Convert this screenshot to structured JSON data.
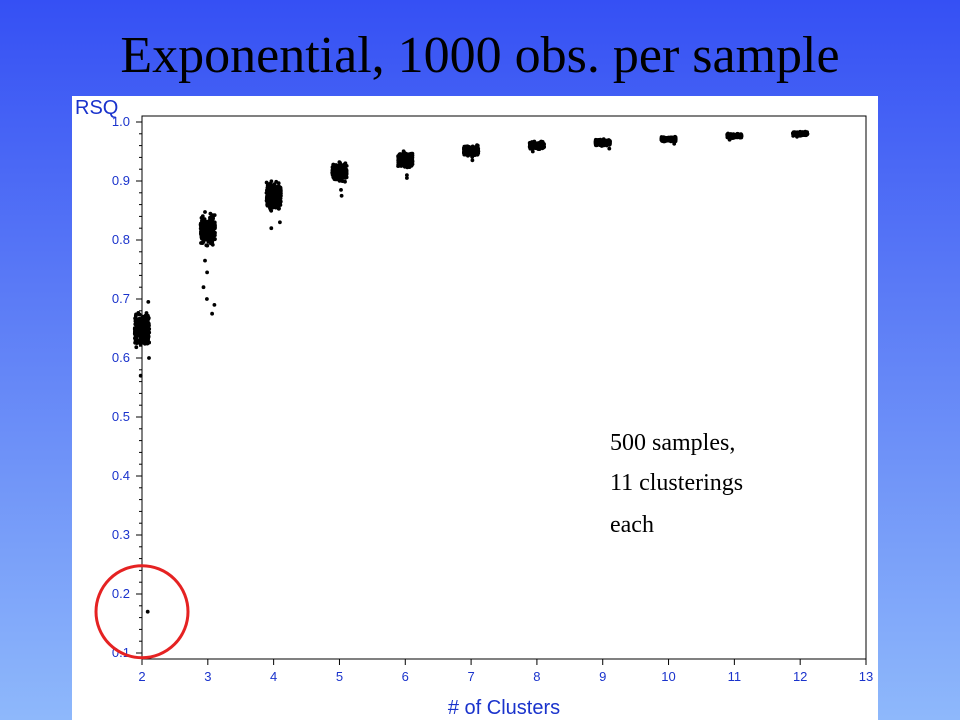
{
  "slide": {
    "title": "Exponential, 1000 obs. per sample"
  },
  "chart_data": {
    "type": "scatter",
    "title": "",
    "xlabel": "# of Clusters",
    "ylabel": "RSQ",
    "xlim": [
      2,
      13
    ],
    "ylim": [
      0.1,
      1.0
    ],
    "xticks": [
      2,
      3,
      4,
      5,
      6,
      7,
      8,
      9,
      10,
      11,
      12,
      13
    ],
    "yticks": [
      "0.1",
      "0.2",
      "0.3",
      "0.4",
      "0.5",
      "0.6",
      "0.7",
      "0.8",
      "0.9",
      "1.0"
    ],
    "grid": false,
    "annotation": [
      "500 samples,",
      "11 clusterings",
      "each"
    ],
    "highlight": {
      "x": 2,
      "y": 0.17,
      "shape": "circle",
      "color": "#e52222"
    },
    "clusters": [
      {
        "x": 2,
        "core": [
          0.615,
          0.685
        ],
        "tails": [
          0.57,
          0.6,
          0.695,
          0.17
        ]
      },
      {
        "x": 3,
        "core": [
          0.785,
          0.85
        ],
        "tails": [
          0.675,
          0.69,
          0.7,
          0.72,
          0.745,
          0.765
        ]
      },
      {
        "x": 4,
        "core": [
          0.84,
          0.905
        ],
        "tails": [
          0.82,
          0.83
        ]
      },
      {
        "x": 5,
        "core": [
          0.895,
          0.935
        ],
        "tails": [
          0.875,
          0.885
        ]
      },
      {
        "x": 6,
        "core": [
          0.92,
          0.952
        ],
        "tails": [
          0.905,
          0.91
        ]
      },
      {
        "x": 7,
        "core": [
          0.94,
          0.962
        ],
        "tails": [
          0.935
        ]
      },
      {
        "x": 8,
        "core": [
          0.953,
          0.968
        ],
        "tails": [
          0.95
        ]
      },
      {
        "x": 9,
        "core": [
          0.958,
          0.972
        ],
        "tails": [
          0.955
        ]
      },
      {
        "x": 10,
        "core": [
          0.966,
          0.976
        ],
        "tails": [
          0.963
        ]
      },
      {
        "x": 11,
        "core": [
          0.972,
          0.981
        ],
        "tails": [
          0.97
        ]
      },
      {
        "x": 12,
        "core": [
          0.976,
          0.984
        ],
        "tails": [
          0.975
        ]
      }
    ]
  }
}
